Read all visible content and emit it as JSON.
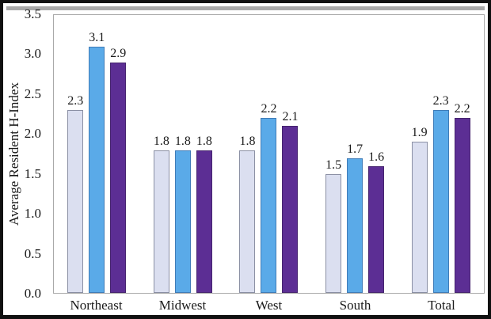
{
  "figure": {
    "kind": "grouped-bar-chart-screenshot"
  },
  "chart_data": {
    "type": "bar",
    "title": "",
    "xlabel": "",
    "ylabel": "Average Resident H-Index",
    "categories": [
      "Northeast",
      "Midwest",
      "West",
      "South",
      "Total"
    ],
    "series": [
      {
        "name": "series-1",
        "color": "#dbdff0",
        "border_color": "#8b90a4",
        "values": [
          2.3,
          1.8,
          1.8,
          1.5,
          1.9
        ]
      },
      {
        "name": "series-2",
        "color": "#5aaae8",
        "border_color": "#3f7cb8",
        "values": [
          3.1,
          1.8,
          2.2,
          1.7,
          2.3
        ]
      },
      {
        "name": "series-3",
        "color": "#5c2e94",
        "border_color": "#46246f",
        "values": [
          2.9,
          1.8,
          2.1,
          1.6,
          2.2
        ]
      }
    ],
    "ylim": [
      0,
      3.5
    ],
    "ytick_labels": [
      "0.0",
      "0.5",
      "1.0",
      "1.5",
      "2.0",
      "2.5",
      "3.0",
      "3.5"
    ],
    "grid": "off",
    "legend": "none",
    "data_labels": true,
    "data_label_decimals": 1
  },
  "colors": {
    "frame": "#101010",
    "top_shadow": "#a8a8a8",
    "plot_border": "#a9a9a9",
    "text": "#1a1a1a"
  }
}
